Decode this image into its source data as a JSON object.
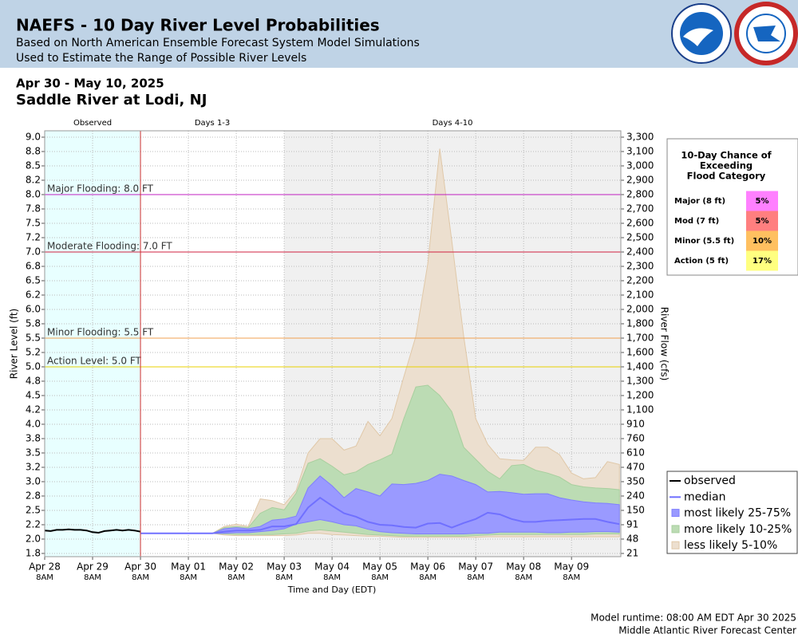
{
  "chart_data": {
    "type": "line",
    "title": "NAEFS - 10 Day River Level Probabilities",
    "subtitles": [
      "Based on North American Ensemble Forecast System Model Simulations",
      "Used to Estimate the Range of Possible River Levels"
    ],
    "date_range": "Apr 30 - May 10, 2025",
    "station": "Saddle River at Lodi, NJ",
    "ylabel": "River Level (ft)",
    "y2label": "River Flow (cfs)",
    "xlabel": "Time and Day (EDT)",
    "footer": [
      "Model runtime: 08:00 AM EDT Apr 30 2025",
      "Middle Atlantic River Forecast Center"
    ],
    "grid": true,
    "xlim": [
      0,
      12.03
    ],
    "ylim": [
      1.694,
      9.111
    ],
    "periods": [
      {
        "label": "Observed",
        "start": 0,
        "end": 2,
        "color": "#e8ffff"
      },
      {
        "label": "Days 1-3",
        "start": 2,
        "end": 5,
        "color": "#ffffff"
      },
      {
        "label": "Days 4-10",
        "start": 5,
        "end": 12.03,
        "color": "#f0f0f0"
      }
    ],
    "xticks": [
      {
        "value": 0,
        "label": "Apr 28",
        "time": "8AM"
      },
      {
        "value": 1,
        "label": "Apr 29",
        "time": "8AM"
      },
      {
        "value": 2,
        "label": "Apr 30",
        "time": "8AM"
      },
      {
        "value": 3,
        "label": "May 01",
        "time": "8AM"
      },
      {
        "value": 4,
        "label": "May 02",
        "time": "8AM"
      },
      {
        "value": 5,
        "label": "May 03",
        "time": "8AM"
      },
      {
        "value": 6,
        "label": "May 04",
        "time": "8AM"
      },
      {
        "value": 7,
        "label": "May 05",
        "time": "8AM"
      },
      {
        "value": 8,
        "label": "May 06",
        "time": "8AM"
      },
      {
        "value": 9,
        "label": "May 07",
        "time": "8AM"
      },
      {
        "value": 10,
        "label": "May 08",
        "time": "8AM"
      },
      {
        "value": 11,
        "label": "May 09",
        "time": "8AM"
      }
    ],
    "yticks": [
      {
        "value": 9.0,
        "label": "9.0"
      },
      {
        "value": 8.75,
        "label": "8.8"
      },
      {
        "value": 8.5,
        "label": "8.5"
      },
      {
        "value": 8.25,
        "label": "8.2"
      },
      {
        "value": 8.0,
        "label": "8.0"
      },
      {
        "value": 7.75,
        "label": "7.8"
      },
      {
        "value": 7.5,
        "label": "7.5"
      },
      {
        "value": 7.25,
        "label": "7.2"
      },
      {
        "value": 7.0,
        "label": "7.0"
      },
      {
        "value": 6.75,
        "label": "6.8"
      },
      {
        "value": 6.5,
        "label": "6.5"
      },
      {
        "value": 6.25,
        "label": "6.2"
      },
      {
        "value": 6.0,
        "label": "6.0"
      },
      {
        "value": 5.75,
        "label": "5.8"
      },
      {
        "value": 5.5,
        "label": "5.5"
      },
      {
        "value": 5.25,
        "label": "5.2"
      },
      {
        "value": 5.0,
        "label": "5.0"
      },
      {
        "value": 4.75,
        "label": "4.8"
      },
      {
        "value": 4.5,
        "label": "4.5"
      },
      {
        "value": 4.25,
        "label": "4.2"
      },
      {
        "value": 4.0,
        "label": "4.0"
      },
      {
        "value": 3.75,
        "label": "3.8"
      },
      {
        "value": 3.5,
        "label": "3.5"
      },
      {
        "value": 3.25,
        "label": "3.2"
      },
      {
        "value": 3.0,
        "label": "3.0"
      },
      {
        "value": 2.75,
        "label": "2.8"
      },
      {
        "value": 2.5,
        "label": "2.5"
      },
      {
        "value": 2.25,
        "label": "2.2"
      },
      {
        "value": 2.0,
        "label": "2.0"
      },
      {
        "value": 1.75,
        "label": "1.8"
      }
    ],
    "y2ticks": [
      {
        "value": 3300,
        "label": "3,300"
      },
      {
        "value": 3100,
        "label": "3,100"
      },
      {
        "value": 3000,
        "label": "3,000"
      },
      {
        "value": 2900,
        "label": "2,900"
      },
      {
        "value": 2800,
        "label": "2,800"
      },
      {
        "value": 2700,
        "label": "2,700"
      },
      {
        "value": 2600,
        "label": "2,600"
      },
      {
        "value": 2500,
        "label": "2,500"
      },
      {
        "value": 2400,
        "label": "2,400"
      },
      {
        "value": 2300,
        "label": "2,300"
      },
      {
        "value": 2200,
        "label": "2,200"
      },
      {
        "value": 2100,
        "label": "2,100"
      },
      {
        "value": 2000,
        "label": "2,000"
      },
      {
        "value": 1800,
        "label": "1,800"
      },
      {
        "value": 1700,
        "label": "1,700"
      },
      {
        "value": 1600,
        "label": "1,600"
      },
      {
        "value": 1400,
        "label": "1,400"
      },
      {
        "value": 1300,
        "label": "1,300"
      },
      {
        "value": 1200,
        "label": "1,200"
      },
      {
        "value": 1100,
        "label": "1,100"
      },
      910,
      760,
      610,
      470,
      350,
      240,
      150,
      91,
      48,
      21
    ],
    "thresholds": [
      {
        "label": "Major Flooding: 8.0 FT",
        "value": 8.0,
        "color": "#c020c0"
      },
      {
        "label": "Moderate Flooding: 7.0 FT",
        "value": 7.0,
        "color": "#d02040"
      },
      {
        "label": "Minor Flooding: 5.5 FT",
        "value": 5.5,
        "color": "#f0a050"
      },
      {
        "label": "Action Level: 5.0 FT",
        "value": 5.0,
        "color": "#e8d000"
      }
    ],
    "x": [
      2,
      2.25,
      2.5,
      2.75,
      3,
      3.25,
      3.5,
      3.75,
      4,
      4.25,
      4.5,
      4.75,
      5,
      5.25,
      5.5,
      5.75,
      6,
      6.25,
      6.5,
      6.75,
      7,
      7.25,
      7.5,
      7.75,
      8,
      8.25,
      8.5,
      8.75,
      9,
      9.25,
      9.5,
      9.75,
      10,
      10.25,
      10.5,
      10.75,
      11,
      11.25,
      11.5,
      11.75,
      12
    ],
    "series": [
      {
        "name": "observed",
        "type": "line",
        "color": "#000000",
        "x": [
          0,
          0.125,
          0.25,
          0.375,
          0.5,
          0.625,
          0.75,
          0.875,
          1,
          1.125,
          1.25,
          1.375,
          1.5,
          1.625,
          1.75,
          1.875,
          2
        ],
        "values": [
          2.15,
          2.14,
          2.16,
          2.16,
          2.17,
          2.16,
          2.16,
          2.15,
          2.12,
          2.11,
          2.14,
          2.15,
          2.16,
          2.15,
          2.16,
          2.15,
          2.13
        ]
      },
      {
        "name": "median",
        "type": "line",
        "color": "#7070ff",
        "values": [
          2.1,
          2.1,
          2.1,
          2.1,
          2.1,
          2.1,
          2.1,
          2.13,
          2.15,
          2.15,
          2.16,
          2.22,
          2.22,
          2.26,
          2.55,
          2.72,
          2.58,
          2.45,
          2.39,
          2.3,
          2.25,
          2.24,
          2.21,
          2.2,
          2.27,
          2.28,
          2.2,
          2.28,
          2.35,
          2.46,
          2.43,
          2.35,
          2.3,
          2.3,
          2.32,
          2.33,
          2.34,
          2.35,
          2.35,
          2.3,
          2.26
        ]
      },
      {
        "name": "most likely 25-75%",
        "type": "band",
        "color": "#9a9aff",
        "stroke": "#7f7fff",
        "lower": [
          2.1,
          2.1,
          2.1,
          2.1,
          2.1,
          2.1,
          2.1,
          2.1,
          2.11,
          2.11,
          2.13,
          2.15,
          2.18,
          2.26,
          2.3,
          2.34,
          2.3,
          2.25,
          2.23,
          2.17,
          2.13,
          2.11,
          2.1,
          2.09,
          2.09,
          2.09,
          2.09,
          2.09,
          2.1,
          2.1,
          2.12,
          2.12,
          2.12,
          2.12,
          2.11,
          2.11,
          2.12,
          2.12,
          2.13,
          2.13,
          2.12
        ],
        "upper": [
          2.1,
          2.1,
          2.1,
          2.1,
          2.1,
          2.1,
          2.1,
          2.18,
          2.2,
          2.18,
          2.22,
          2.33,
          2.35,
          2.4,
          2.89,
          3.1,
          2.93,
          2.72,
          2.88,
          2.82,
          2.75,
          2.96,
          2.95,
          2.97,
          3.02,
          3.13,
          3.1,
          3.02,
          2.95,
          2.82,
          2.83,
          2.81,
          2.78,
          2.79,
          2.79,
          2.72,
          2.68,
          2.65,
          2.63,
          2.62,
          2.6
        ]
      },
      {
        "name": "more likely 10-25%",
        "type": "band",
        "color": "#bcdcb4",
        "stroke": "#a8cf9e",
        "lower": [
          2.1,
          2.1,
          2.1,
          2.1,
          2.1,
          2.1,
          2.1,
          2.09,
          2.08,
          2.08,
          2.08,
          2.08,
          2.09,
          2.1,
          2.14,
          2.16,
          2.14,
          2.12,
          2.1,
          2.08,
          2.07,
          2.06,
          2.05,
          2.05,
          2.05,
          2.05,
          2.05,
          2.05,
          2.06,
          2.07,
          2.08,
          2.08,
          2.08,
          2.08,
          2.08,
          2.08,
          2.08,
          2.08,
          2.09,
          2.09,
          2.09
        ],
        "upper": [
          2.1,
          2.1,
          2.1,
          2.1,
          2.1,
          2.1,
          2.1,
          2.2,
          2.22,
          2.2,
          2.45,
          2.55,
          2.51,
          2.8,
          3.32,
          3.4,
          3.27,
          3.12,
          3.17,
          3.3,
          3.38,
          3.48,
          4.1,
          4.65,
          4.68,
          4.5,
          4.22,
          3.6,
          3.39,
          3.18,
          3.05,
          3.28,
          3.3,
          3.2,
          3.15,
          3.08,
          2.95,
          2.91,
          2.89,
          2.88,
          2.86
        ]
      },
      {
        "name": "less likely 5-10%",
        "type": "band",
        "color": "#ecdfcf",
        "stroke": "#e0c8a8",
        "lower": [
          2.1,
          2.1,
          2.1,
          2.1,
          2.1,
          2.1,
          2.1,
          2.07,
          2.06,
          2.06,
          2.06,
          2.06,
          2.06,
          2.07,
          2.1,
          2.1,
          2.08,
          2.07,
          2.06,
          2.05,
          2.05,
          2.04,
          2.03,
          2.03,
          2.03,
          2.03,
          2.03,
          2.03,
          2.03,
          2.04,
          2.04,
          2.04,
          2.04,
          2.04,
          2.04,
          2.04,
          2.04,
          2.04,
          2.04,
          2.04,
          2.04
        ],
        "upper": [
          2.1,
          2.1,
          2.1,
          2.1,
          2.1,
          2.1,
          2.1,
          2.22,
          2.26,
          2.22,
          2.7,
          2.67,
          2.6,
          2.85,
          3.5,
          3.75,
          3.75,
          3.55,
          3.62,
          4.05,
          3.8,
          4.1,
          4.83,
          5.53,
          6.8,
          8.8,
          7.2,
          5.53,
          4.1,
          3.65,
          3.4,
          3.38,
          3.37,
          3.6,
          3.6,
          3.47,
          3.15,
          3.05,
          3.07,
          3.35,
          3.3
        ]
      }
    ],
    "exceedance": {
      "title": [
        "10-Day Chance of",
        "Exceeding",
        "Flood Category"
      ],
      "rows": [
        {
          "label": "Major (8 ft)",
          "value": "5%",
          "color": "#ff80ff"
        },
        {
          "label": "Mod (7 ft)",
          "value": "5%",
          "color": "#ff7f7f"
        },
        {
          "label": "Minor (5.5 ft)",
          "value": "10%",
          "color": "#ffc060"
        },
        {
          "label": "Action (5 ft)",
          "value": "17%",
          "color": "#ffff80"
        }
      ]
    }
  }
}
